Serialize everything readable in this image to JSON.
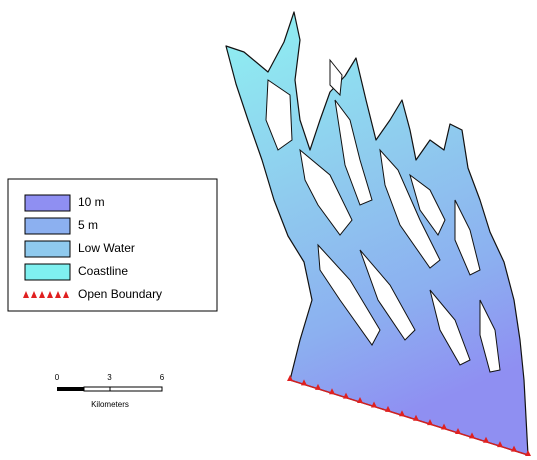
{
  "legend": {
    "items": [
      {
        "label": "10 m",
        "color": "#8f8ff2"
      },
      {
        "label": "5 m",
        "color": "#8cb0f0"
      },
      {
        "label": "Low Water",
        "color": "#8fcaee"
      },
      {
        "label": "Coastline",
        "color": "#7ff0f0"
      },
      {
        "label": "Open Boundary",
        "color": "#e02020"
      }
    ]
  },
  "scale_bar": {
    "ticks": [
      0,
      3,
      6
    ],
    "unit": "Kilometers"
  }
}
